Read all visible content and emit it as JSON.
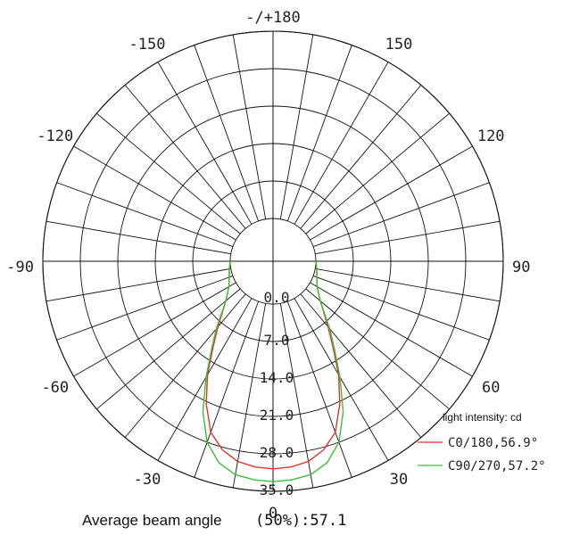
{
  "chart_data": {
    "type": "polar",
    "title": "",
    "angle_labels": [
      {
        "deg": 180,
        "text": "-/+180"
      },
      {
        "deg": -150,
        "text": "-150"
      },
      {
        "deg": 150,
        "text": "150"
      },
      {
        "deg": -120,
        "text": "-120"
      },
      {
        "deg": 120,
        "text": "120"
      },
      {
        "deg": -90,
        "text": "-90"
      },
      {
        "deg": 90,
        "text": "90"
      },
      {
        "deg": -60,
        "text": "-60"
      },
      {
        "deg": 60,
        "text": "60"
      },
      {
        "deg": -30,
        "text": "-30"
      },
      {
        "deg": 30,
        "text": "30"
      },
      {
        "deg": 0,
        "text": "0"
      }
    ],
    "radial_ticks": [
      0,
      7,
      14,
      21,
      28,
      35
    ],
    "radial_tick_labels": [
      "0.0",
      "7.0",
      "14.0",
      "21.0",
      "28.0",
      "35.0"
    ],
    "radial_max": 35,
    "grid_step_deg": 10,
    "legend_title": "light intensity: cd",
    "legend_placement": "bottom-right",
    "series": [
      {
        "name": "C0/180,56.9°",
        "color": "#e0332a",
        "angles": [
          -90,
          -80,
          -70,
          -60,
          -50,
          -40,
          -35,
          -30,
          -25,
          -20,
          -15,
          -10,
          -5,
          0,
          5,
          10,
          15,
          20,
          25,
          30,
          35,
          40,
          50,
          60,
          70,
          80,
          90
        ],
        "values": [
          0,
          0.3,
          0.7,
          1.5,
          3.5,
          8.0,
          11.5,
          16.5,
          21.5,
          26.0,
          28.5,
          30.0,
          30.6,
          30.8,
          30.6,
          30.0,
          28.5,
          26.0,
          21.5,
          16.5,
          11.5,
          8.0,
          3.5,
          1.5,
          0.7,
          0.3,
          0
        ]
      },
      {
        "name": "C90/270,57.2°",
        "color": "#3cbf3c",
        "angles": [
          -90,
          -80,
          -70,
          -60,
          -50,
          -40,
          -35,
          -30,
          -25,
          -20,
          -15,
          -10,
          -5,
          0,
          5,
          10,
          15,
          20,
          25,
          30,
          35,
          40,
          50,
          60,
          70,
          80,
          90
        ],
        "values": [
          0,
          0.3,
          0.7,
          1.5,
          3.5,
          8.5,
          12.0,
          17.0,
          23.0,
          28.0,
          31.0,
          32.5,
          33.0,
          33.2,
          33.0,
          32.5,
          31.0,
          28.0,
          23.0,
          17.0,
          12.0,
          8.5,
          3.5,
          1.5,
          0.7,
          0.3,
          0
        ]
      }
    ]
  },
  "footer": {
    "label": "Average beam angle",
    "value": "(50%):57.1"
  }
}
